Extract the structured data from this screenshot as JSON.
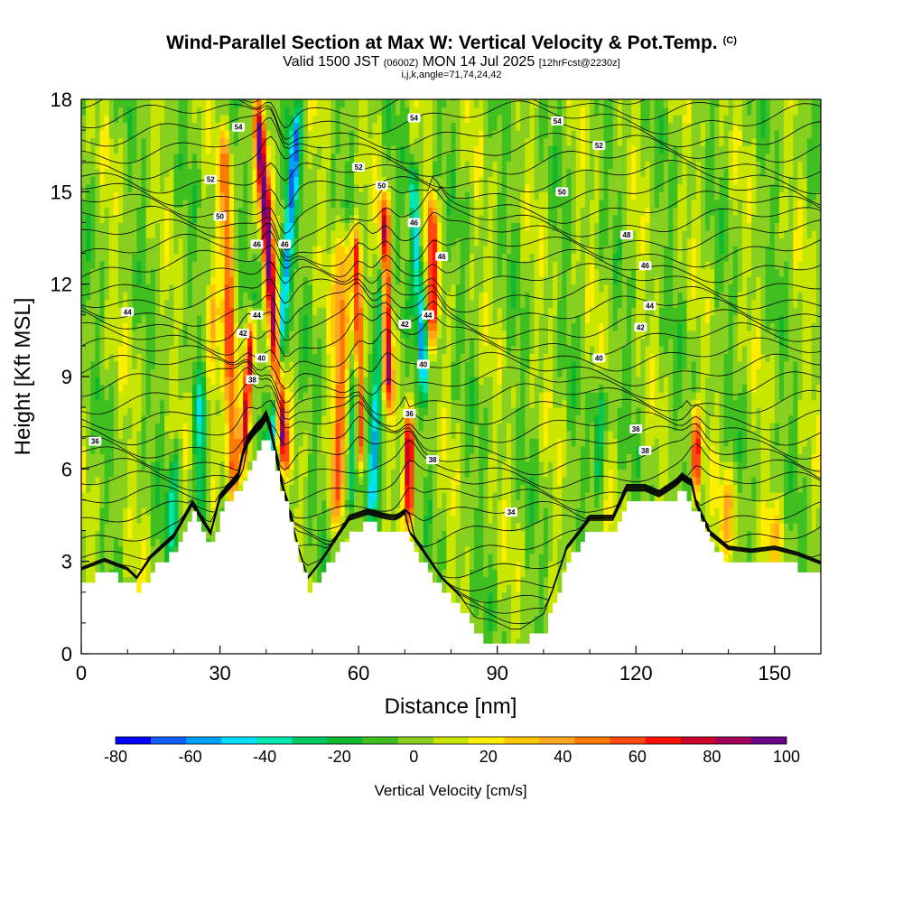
{
  "header": {
    "title": "Wind-Parallel Section at Max W: Vertical Velocity & Pot.Temp.",
    "title_mark": "(C)",
    "valid_prefix": "Valid 1500 JST",
    "valid_utc": "(0600Z)",
    "valid_date": "MON 14 Jul 2025",
    "forecast": "[12hrFcst@2230z]",
    "indices": "i,j,k,angle=71,74,24,42"
  },
  "chart_data": {
    "type": "heatmap",
    "xlabel": "Distance [nm]",
    "ylabel": "Height [Kft MSL]",
    "xlim": [
      0,
      160
    ],
    "ylim": [
      0,
      18
    ],
    "x_ticks": [
      0,
      30,
      60,
      90,
      120,
      150
    ],
    "y_ticks": [
      0,
      3,
      6,
      9,
      12,
      15,
      18
    ],
    "terrain_kft": [
      [
        0,
        2.3
      ],
      [
        5,
        2.6
      ],
      [
        10,
        2.3
      ],
      [
        12,
        2.0
      ],
      [
        15,
        2.7
      ],
      [
        20,
        3.4
      ],
      [
        24,
        4.5
      ],
      [
        28,
        3.5
      ],
      [
        30,
        4.7
      ],
      [
        34,
        5.4
      ],
      [
        38,
        6.7
      ],
      [
        40,
        7.0
      ],
      [
        42,
        6.0
      ],
      [
        44,
        4.8
      ],
      [
        47,
        3.0
      ],
      [
        49,
        2.0
      ],
      [
        52,
        2.6
      ],
      [
        55,
        3.3
      ],
      [
        58,
        4.0
      ],
      [
        62,
        4.2
      ],
      [
        67,
        4.0
      ],
      [
        70,
        3.8
      ],
      [
        74,
        2.9
      ],
      [
        78,
        2.0
      ],
      [
        82,
        1.4
      ],
      [
        86,
        0.5
      ],
      [
        90,
        0.3
      ],
      [
        95,
        0.3
      ],
      [
        100,
        0.8
      ],
      [
        102,
        1.6
      ],
      [
        105,
        3.0
      ],
      [
        110,
        4.0
      ],
      [
        115,
        4.0
      ],
      [
        118,
        5.0
      ],
      [
        122,
        5.0
      ],
      [
        125,
        4.8
      ],
      [
        127,
        5.0
      ],
      [
        130,
        5.3
      ],
      [
        133,
        4.5
      ],
      [
        136,
        3.5
      ],
      [
        140,
        3.0
      ],
      [
        145,
        2.9
      ],
      [
        150,
        3.0
      ],
      [
        155,
        2.8
      ],
      [
        160,
        2.5
      ]
    ],
    "theta_contours": [
      {
        "label": "34",
        "x": 93,
        "y": 4.6
      },
      {
        "label": "36",
        "x": 3,
        "y": 6.9
      },
      {
        "label": "36",
        "x": 71,
        "y": 7.8
      },
      {
        "label": "36",
        "x": 120,
        "y": 7.3
      },
      {
        "label": "38",
        "x": 37,
        "y": 8.9
      },
      {
        "label": "38",
        "x": 76,
        "y": 6.3
      },
      {
        "label": "38",
        "x": 122,
        "y": 6.6
      },
      {
        "label": "40",
        "x": 39,
        "y": 9.6
      },
      {
        "label": "40",
        "x": 74,
        "y": 9.4
      },
      {
        "label": "40",
        "x": 112,
        "y": 9.6
      },
      {
        "label": "42",
        "x": 35,
        "y": 10.4
      },
      {
        "label": "42",
        "x": 70,
        "y": 10.7
      },
      {
        "label": "42",
        "x": 121,
        "y": 10.6
      },
      {
        "label": "44",
        "x": 10,
        "y": 11.1
      },
      {
        "label": "44",
        "x": 38,
        "y": 11.0
      },
      {
        "label": "44",
        "x": 75,
        "y": 11.0
      },
      {
        "label": "44",
        "x": 123,
        "y": 11.3
      },
      {
        "label": "46",
        "x": 38,
        "y": 13.3
      },
      {
        "label": "46",
        "x": 44,
        "y": 13.3
      },
      {
        "label": "46",
        "x": 72,
        "y": 14.0
      },
      {
        "label": "46",
        "x": 78,
        "y": 12.9
      },
      {
        "label": "46",
        "x": 122,
        "y": 12.6
      },
      {
        "label": "48",
        "x": 118,
        "y": 13.6
      },
      {
        "label": "50",
        "x": 30,
        "y": 14.2
      },
      {
        "label": "50",
        "x": 65,
        "y": 15.2
      },
      {
        "label": "50",
        "x": 104,
        "y": 15.0
      },
      {
        "label": "52",
        "x": 28,
        "y": 15.4
      },
      {
        "label": "52",
        "x": 60,
        "y": 15.8
      },
      {
        "label": "52",
        "x": 112,
        "y": 16.5
      },
      {
        "label": "54",
        "x": 34,
        "y": 17.1
      },
      {
        "label": "54",
        "x": 72,
        "y": 17.4
      },
      {
        "label": "54",
        "x": 103,
        "y": 17.3
      }
    ],
    "w_features": [
      {
        "x": 41,
        "yb": 6,
        "yt": 18,
        "lean": -6,
        "amp": 95,
        "w": 1.2
      },
      {
        "x": 44,
        "yb": 6,
        "yt": 18,
        "lean": 6,
        "amp": -65,
        "w": 1.1
      },
      {
        "x": 36,
        "yb": 6,
        "yt": 11,
        "lean": 2,
        "amp": 90,
        "w": 0.9
      },
      {
        "x": 32,
        "yb": 5,
        "yt": 17,
        "lean": -2,
        "amp": 50,
        "w": 1.3
      },
      {
        "x": 26,
        "yb": 4,
        "yt": 9,
        "lean": 0,
        "amp": -45,
        "w": 1.5
      },
      {
        "x": 20,
        "yb": 3,
        "yt": 7,
        "lean": 1,
        "amp": -30,
        "w": 1.5
      },
      {
        "x": 28,
        "yb": 4,
        "yt": 12,
        "lean": 1,
        "amp": 30,
        "w": 1.5
      },
      {
        "x": 56,
        "yb": 4,
        "yt": 14,
        "lean": 2,
        "amp": 45,
        "w": 1.6
      },
      {
        "x": 60,
        "yb": 6,
        "yt": 14,
        "lean": -1,
        "amp": 80,
        "w": 1.0
      },
      {
        "x": 59,
        "yb": 4,
        "yt": 10,
        "lean": 2,
        "amp": -45,
        "w": 1.0
      },
      {
        "x": 64,
        "yb": 4,
        "yt": 13,
        "lean": 3,
        "amp": -55,
        "w": 1.0
      },
      {
        "x": 66,
        "yb": 8,
        "yt": 15,
        "lean": -1,
        "amp": 85,
        "w": 1.0
      },
      {
        "x": 71,
        "yb": 4,
        "yt": 8,
        "lean": 0,
        "amp": 90,
        "w": 1.0
      },
      {
        "x": 73,
        "yb": 8,
        "yt": 16,
        "lean": -3,
        "amp": -50,
        "w": 1.0
      },
      {
        "x": 76,
        "yb": 10,
        "yt": 15,
        "lean": 0,
        "amp": 70,
        "w": 1.0
      },
      {
        "x": 112,
        "yb": 5,
        "yt": 9,
        "lean": 1,
        "amp": -40,
        "w": 1.0
      },
      {
        "x": 133,
        "yb": 5,
        "yt": 8,
        "lean": 0,
        "amp": 70,
        "w": 1.0
      },
      {
        "x": 140,
        "yb": 3,
        "yt": 6,
        "lean": 0,
        "amp": 30,
        "w": 2.0
      },
      {
        "x": 150,
        "yb": 3,
        "yt": 5,
        "lean": 0,
        "amp": 25,
        "w": 2.0
      }
    ]
  },
  "colorbar": {
    "title": "Vertical Velocity [cm/s]",
    "levels": [
      -80,
      -70,
      -60,
      -50,
      -40,
      -30,
      -20,
      -10,
      0,
      10,
      20,
      30,
      40,
      50,
      60,
      70,
      80,
      90,
      100
    ],
    "tick_labels": [
      "-80",
      "-60",
      "-40",
      "-20",
      "0",
      "20",
      "40",
      "60",
      "80",
      "100"
    ],
    "colors": [
      "#0000ff",
      "#0f5fff",
      "#00a0ff",
      "#00e0ff",
      "#00e8b0",
      "#00c860",
      "#10b830",
      "#40c020",
      "#88d020",
      "#c8e600",
      "#ffee00",
      "#ffc800",
      "#ffa820",
      "#ff7a00",
      "#ff4a10",
      "#ff1000",
      "#cc0028",
      "#a0005a",
      "#6a008a"
    ]
  }
}
